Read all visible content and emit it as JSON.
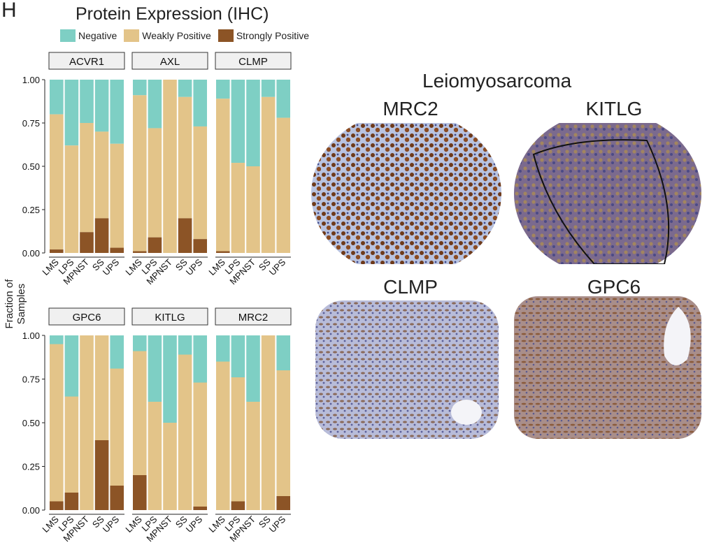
{
  "panel_letter": "H",
  "chart_title": "Protein Expression (IHC)",
  "legend": [
    {
      "label": "Negative",
      "color": "#7ecfc4"
    },
    {
      "label": "Weakly Positive",
      "color": "#e3c489"
    },
    {
      "label": "Strongly Positive",
      "color": "#8c5426"
    }
  ],
  "ylabel": "Fraction of Samples",
  "chart_data": {
    "type": "bar",
    "stacked": true,
    "categories": [
      "LMS",
      "LPS",
      "MPNST",
      "SS",
      "UPS"
    ],
    "ylim": [
      0,
      1
    ],
    "yticks": [
      "0.00",
      "0.25",
      "0.50",
      "0.75",
      "1.00"
    ],
    "series_names": [
      "Strongly Positive",
      "Weakly Positive",
      "Negative"
    ],
    "facets": [
      {
        "title": "ACVR1",
        "strong": [
          0.02,
          0.0,
          0.12,
          0.2,
          0.03
        ],
        "weak": [
          0.78,
          0.62,
          0.63,
          0.5,
          0.6
        ]
      },
      {
        "title": "AXL",
        "strong": [
          0.01,
          0.09,
          0.0,
          0.2,
          0.08
        ],
        "weak": [
          0.9,
          0.63,
          1.0,
          0.7,
          0.65
        ]
      },
      {
        "title": "CLMP",
        "strong": [
          0.01,
          0.0,
          0.0,
          0.0,
          0.0
        ],
        "weak": [
          0.88,
          0.52,
          0.5,
          0.9,
          0.78
        ]
      },
      {
        "title": "GPC6",
        "strong": [
          0.05,
          0.1,
          0.0,
          0.4,
          0.14
        ],
        "weak": [
          0.9,
          0.55,
          1.0,
          0.6,
          0.67
        ]
      },
      {
        "title": "KITLG",
        "strong": [
          0.2,
          0.0,
          0.0,
          0.0,
          0.02
        ],
        "weak": [
          0.71,
          0.62,
          0.5,
          0.89,
          0.71
        ]
      },
      {
        "title": "MRC2",
        "strong": [
          0.0,
          0.05,
          0.0,
          0.0,
          0.08
        ],
        "weak": [
          0.85,
          0.71,
          0.62,
          1.0,
          0.72
        ]
      }
    ]
  },
  "tissue_title": "Leiomyosarcoma",
  "tissue_images": [
    {
      "label": "MRC2",
      "stain": "heavy"
    },
    {
      "label": "KITLG",
      "stain": "diffuse"
    },
    {
      "label": "CLMP",
      "stain": "light"
    },
    {
      "label": "GPC6",
      "stain": "light"
    }
  ]
}
